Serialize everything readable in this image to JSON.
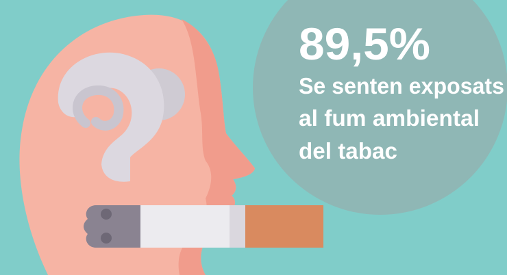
{
  "stat": {
    "figure": "89,5%",
    "lines": [
      "Se senten exposats",
      "al fum ambiental",
      "del tabac"
    ]
  }
}
